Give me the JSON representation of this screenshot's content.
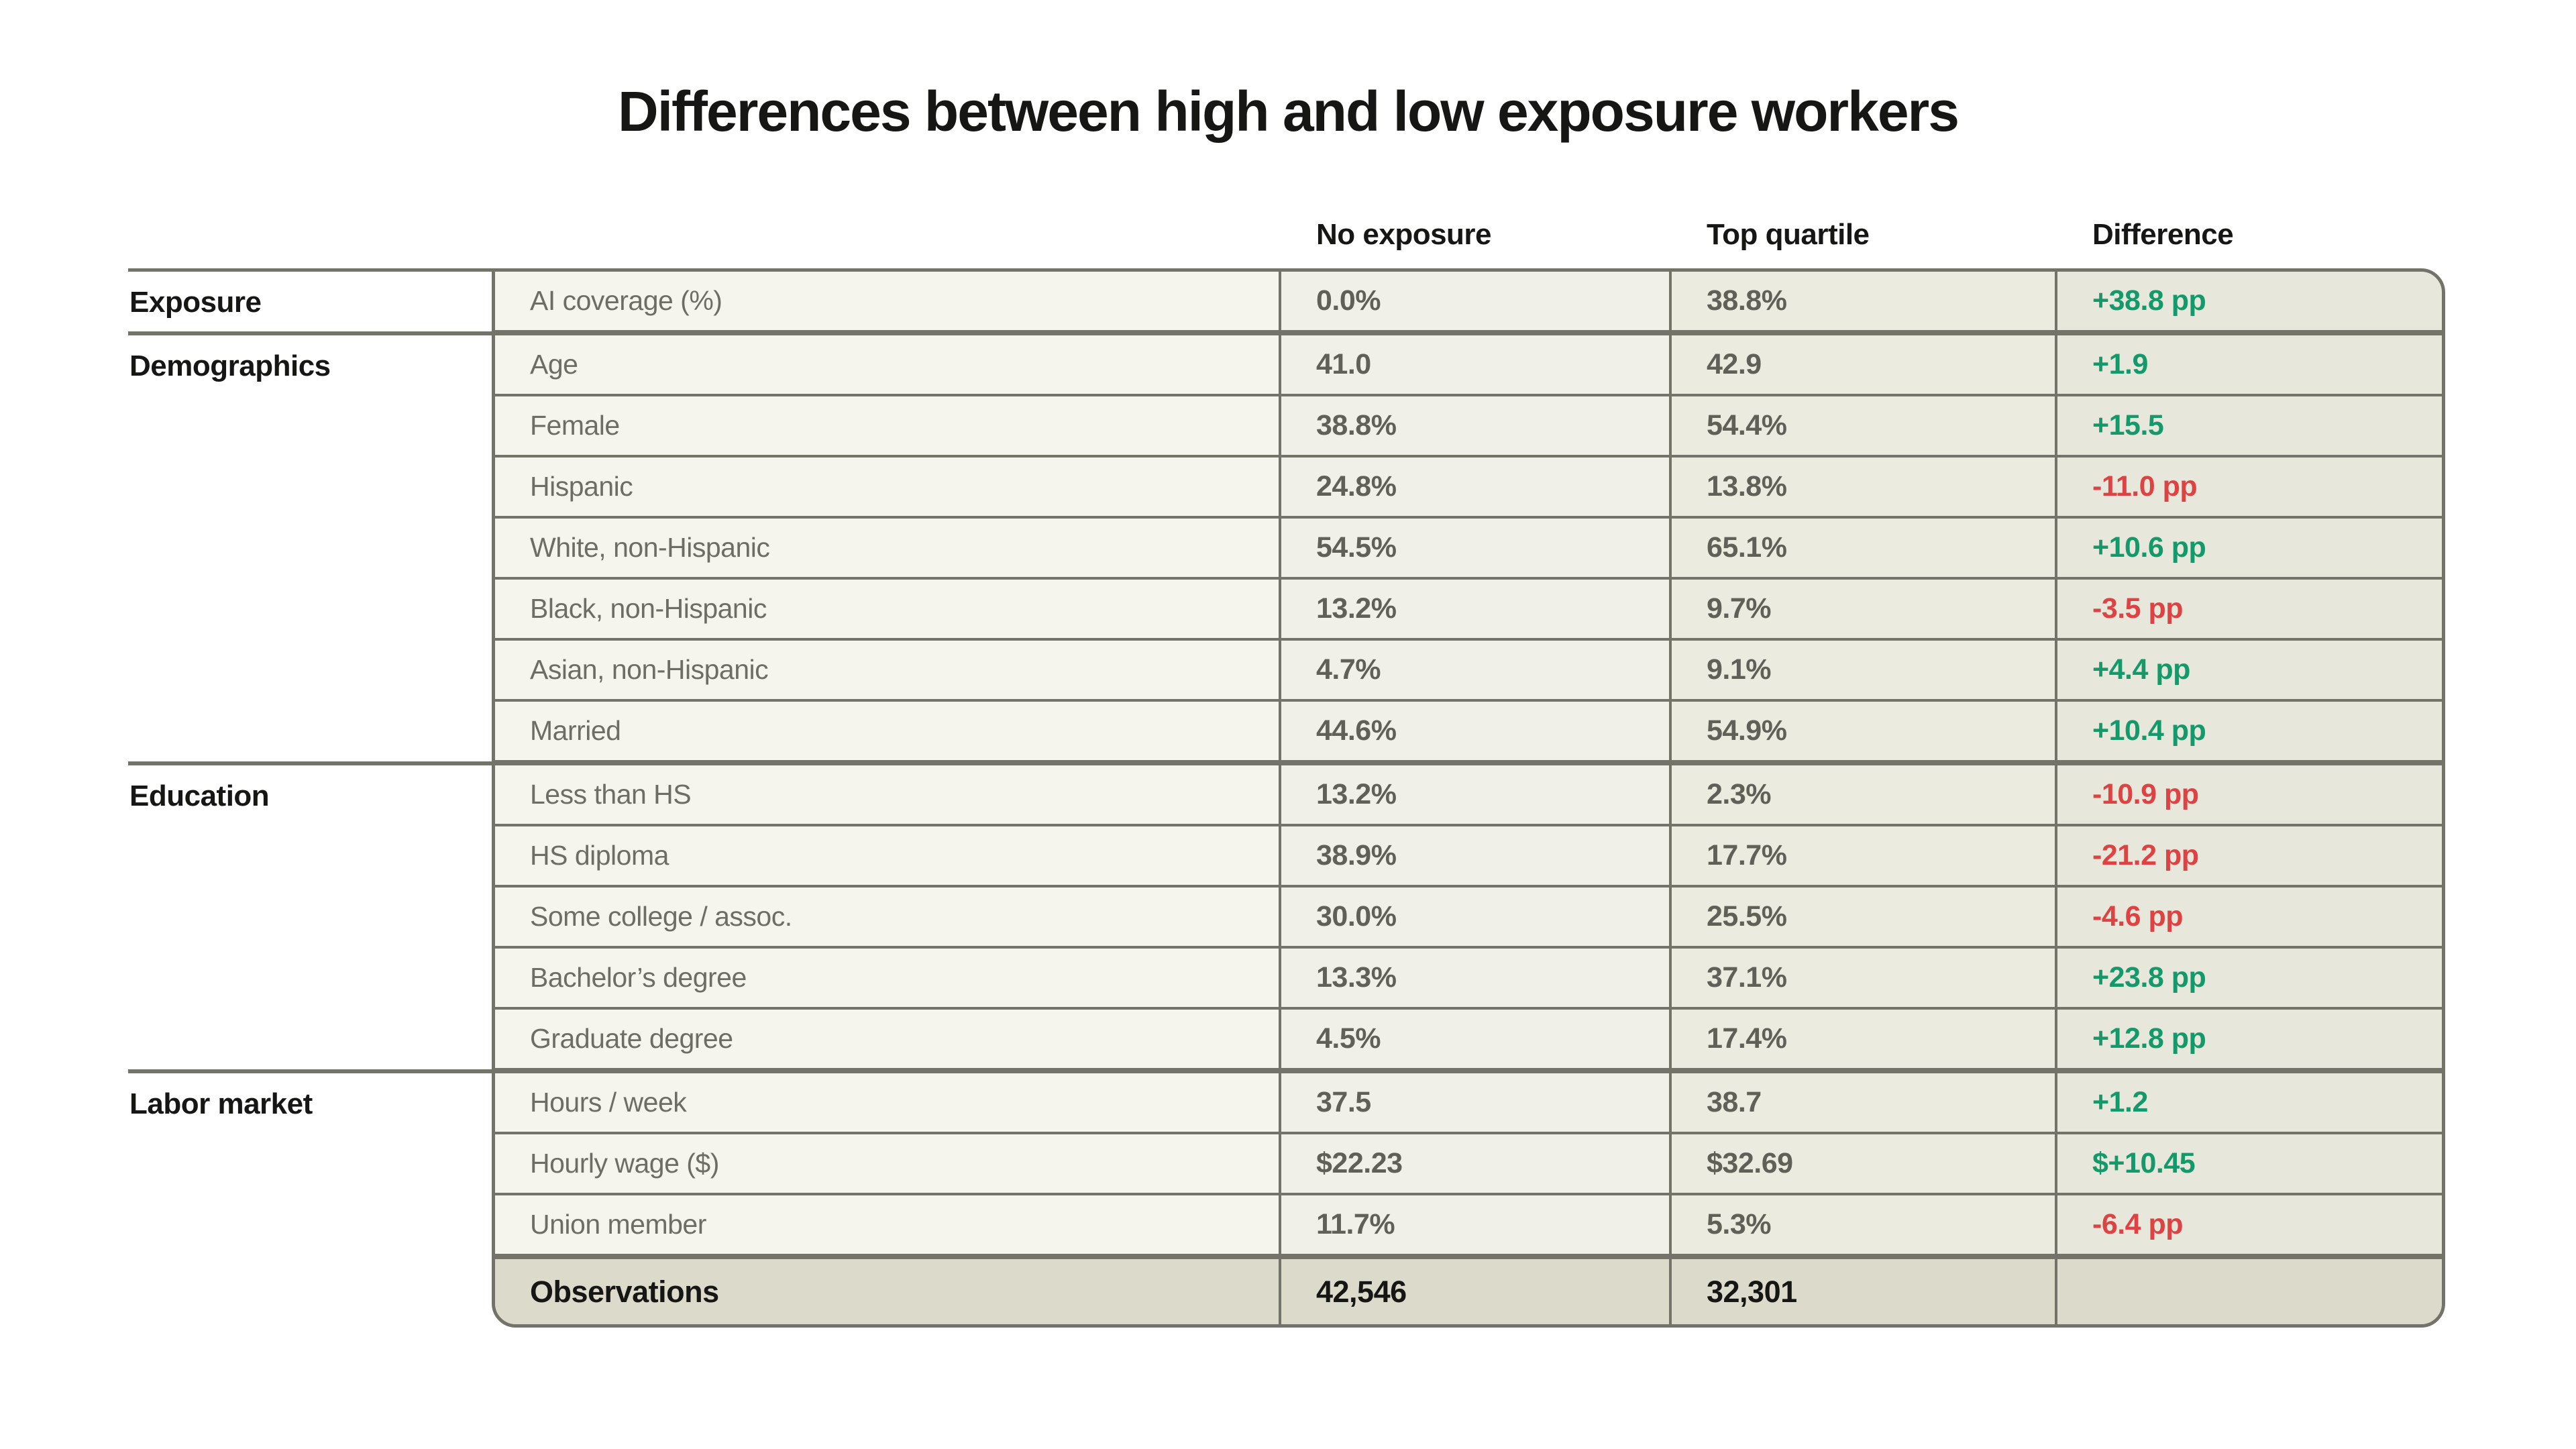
{
  "title": "Differences between high and low exposure workers",
  "colors": {
    "positive": "#14996b",
    "negative": "#de4343",
    "border": "#74736a",
    "ink": "#161614",
    "metric_text": "#6e6d65",
    "value_text": "#605f58",
    "bg_metric_col": "#f5f4ed",
    "bg_no_exposure_col": "#f1f0e8",
    "bg_top_quartile_col": "#ecebe0",
    "bg_difference_col": "#e8e7db",
    "bg_total_row": "#dcdacb"
  },
  "chart_data": {
    "type": "table",
    "title": "Differences between high and low exposure workers",
    "column_headers": [
      "No exposure",
      "Top quartile",
      "Difference"
    ],
    "groups": [
      {
        "label": "Exposure",
        "row_count": 1
      },
      {
        "label": "Demographics",
        "row_count": 7
      },
      {
        "label": "Education",
        "row_count": 5
      },
      {
        "label": "Labor market",
        "row_count": 4
      }
    ],
    "rows": [
      {
        "group": "Exposure",
        "label": "AI coverage (%)",
        "no_exposure": "0.0%",
        "top_quartile": "38.8%",
        "difference": "+38.8 pp",
        "diff_color": "pos",
        "section_end": true,
        "total": false
      },
      {
        "group": "Demographics",
        "label": "Age",
        "no_exposure": "41.0",
        "top_quartile": "42.9",
        "difference": "+1.9",
        "diff_color": "pos",
        "section_end": false,
        "total": false
      },
      {
        "group": "Demographics",
        "label": "Female",
        "no_exposure": "38.8%",
        "top_quartile": "54.4%",
        "difference": "+15.5",
        "diff_color": "pos",
        "section_end": false,
        "total": false
      },
      {
        "group": "Demographics",
        "label": "Hispanic",
        "no_exposure": "24.8%",
        "top_quartile": "13.8%",
        "difference": "-11.0 pp",
        "diff_color": "neg",
        "section_end": false,
        "total": false
      },
      {
        "group": "Demographics",
        "label": "White, non-Hispanic",
        "no_exposure": "54.5%",
        "top_quartile": "65.1%",
        "difference": "+10.6 pp",
        "diff_color": "pos",
        "section_end": false,
        "total": false
      },
      {
        "group": "Demographics",
        "label": "Black, non-Hispanic",
        "no_exposure": "13.2%",
        "top_quartile": "9.7%",
        "difference": "-3.5 pp",
        "diff_color": "neg",
        "section_end": false,
        "total": false
      },
      {
        "group": "Demographics",
        "label": "Asian, non-Hispanic",
        "no_exposure": "4.7%",
        "top_quartile": "9.1%",
        "difference": "+4.4 pp",
        "diff_color": "pos",
        "section_end": false,
        "total": false
      },
      {
        "group": "Demographics",
        "label": "Married",
        "no_exposure": "44.6%",
        "top_quartile": "54.9%",
        "difference": "+10.4 pp",
        "diff_color": "pos",
        "section_end": true,
        "total": false
      },
      {
        "group": "Education",
        "label": "Less than HS",
        "no_exposure": "13.2%",
        "top_quartile": "2.3%",
        "difference": "-10.9 pp",
        "diff_color": "neg",
        "section_end": false,
        "total": false
      },
      {
        "group": "Education",
        "label": "HS diploma",
        "no_exposure": "38.9%",
        "top_quartile": "17.7%",
        "difference": "-21.2 pp",
        "diff_color": "neg",
        "section_end": false,
        "total": false
      },
      {
        "group": "Education",
        "label": "Some college / assoc.",
        "no_exposure": "30.0%",
        "top_quartile": "25.5%",
        "difference": "-4.6 pp",
        "diff_color": "neg",
        "section_end": false,
        "total": false
      },
      {
        "group": "Education",
        "label": "Bachelor’s degree",
        "no_exposure": "13.3%",
        "top_quartile": "37.1%",
        "difference": "+23.8 pp",
        "diff_color": "pos",
        "section_end": false,
        "total": false
      },
      {
        "group": "Education",
        "label": "Graduate degree",
        "no_exposure": "4.5%",
        "top_quartile": "17.4%",
        "difference": "+12.8 pp",
        "diff_color": "pos",
        "section_end": true,
        "total": false
      },
      {
        "group": "Labor market",
        "label": "Hours / week",
        "no_exposure": "37.5",
        "top_quartile": "38.7",
        "difference": "+1.2",
        "diff_color": "pos",
        "section_end": false,
        "total": false
      },
      {
        "group": "Labor market",
        "label": "Hourly wage ($)",
        "no_exposure": "$22.23",
        "top_quartile": "$32.69",
        "difference": "$+10.45",
        "diff_color": "pos",
        "section_end": false,
        "total": false
      },
      {
        "group": "Labor market",
        "label": "Union member",
        "no_exposure": "11.7%",
        "top_quartile": "5.3%",
        "difference": "-6.4 pp",
        "diff_color": "neg",
        "section_end": true,
        "total": false
      },
      {
        "group": "Labor market",
        "label": "Observations",
        "no_exposure": "42,546",
        "top_quartile": "32,301",
        "difference": "",
        "diff_color": null,
        "section_end": false,
        "total": true
      }
    ]
  },
  "header": {
    "col_no_exposure": "No exposure",
    "col_top_quartile": "Top quartile",
    "col_difference": "Difference"
  }
}
